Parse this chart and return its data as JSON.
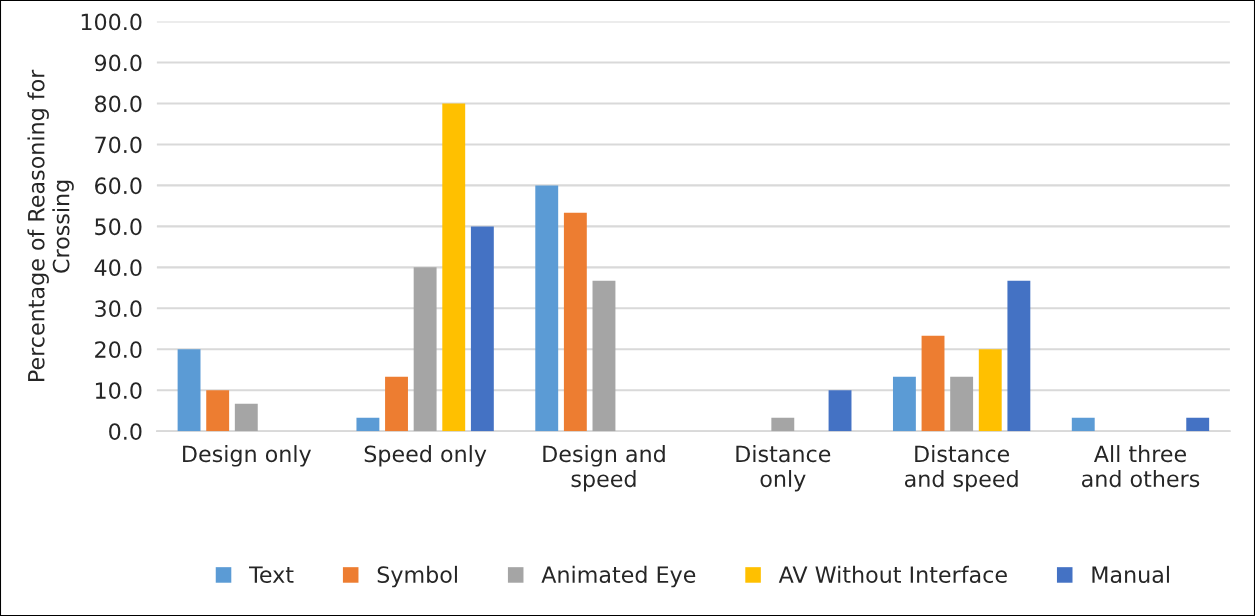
{
  "chart_data": {
    "type": "bar",
    "ylabel": "Percentage of Reasoning for\nCrossing",
    "categories": [
      "Design only",
      "Speed only",
      "Design and\nspeed",
      "Distance\nonly",
      "Distance\nand speed",
      "All three\nand others"
    ],
    "series": [
      {
        "name": "Text",
        "color": "#5b9bd5",
        "values": [
          20.0,
          3.3,
          60.0,
          null,
          13.3,
          3.3
        ]
      },
      {
        "name": "Symbol",
        "color": "#ed7d31",
        "values": [
          10.0,
          13.3,
          53.3,
          null,
          23.3,
          null
        ]
      },
      {
        "name": "Animated Eye",
        "color": "#a5a5a5",
        "values": [
          6.7,
          40.0,
          36.7,
          3.3,
          13.3,
          null
        ]
      },
      {
        "name": "AV Without Interface",
        "color": "#ffc000",
        "values": [
          null,
          80.0,
          null,
          null,
          20.0,
          null
        ]
      },
      {
        "name": "Manual",
        "color": "#4472c4",
        "values": [
          null,
          50.0,
          null,
          10.0,
          36.7,
          3.3
        ]
      }
    ],
    "ylim": [
      0,
      100
    ],
    "yticks": [
      {
        "value": 0,
        "label": "0.0"
      },
      {
        "value": 10,
        "label": "10.0"
      },
      {
        "value": 20,
        "label": "20.0"
      },
      {
        "value": 30,
        "label": "30.0"
      },
      {
        "value": 40,
        "label": "40.0"
      },
      {
        "value": 50,
        "label": "50.0"
      },
      {
        "value": 60,
        "label": "60.0"
      },
      {
        "value": 70,
        "label": "70.0"
      },
      {
        "value": 80,
        "label": "80.0"
      },
      {
        "value": 90,
        "label": "90.0"
      },
      {
        "value": 100,
        "label": "100.0"
      }
    ],
    "grid": "y",
    "legend": "bottom"
  }
}
